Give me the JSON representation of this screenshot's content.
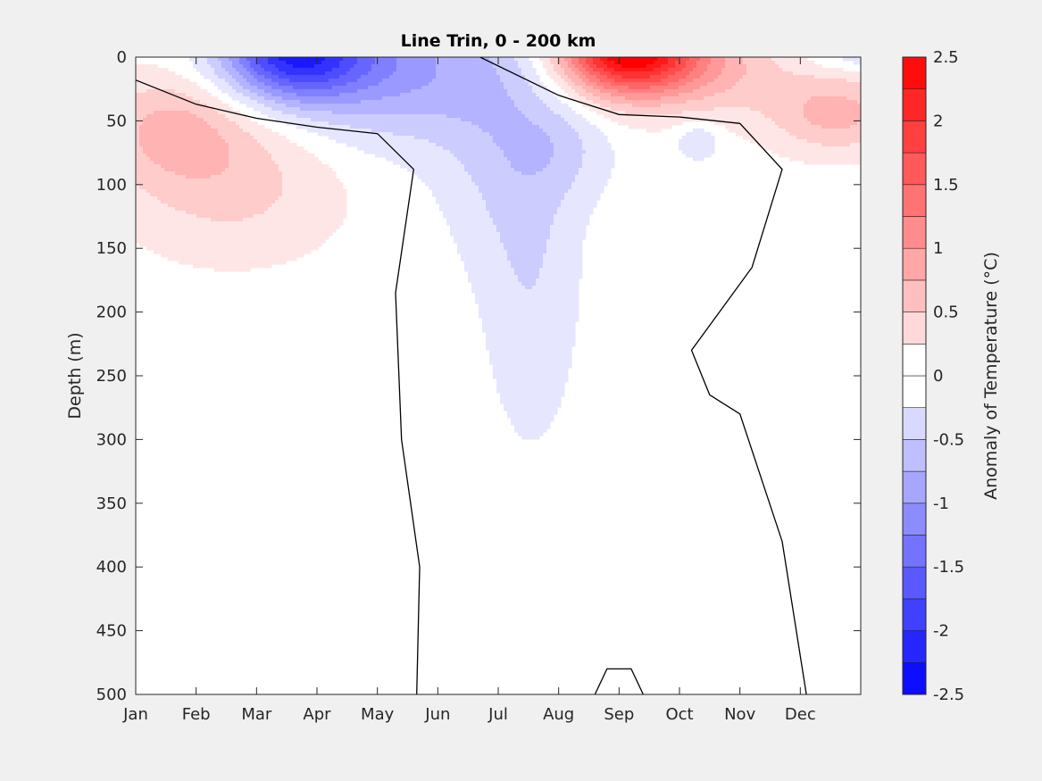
{
  "chart_data": {
    "type": "heatmap",
    "title": "Line Trin, 0 - 200 km",
    "xlabel": "",
    "ylabel": "Depth (m)",
    "x_categories": [
      "Jan",
      "Feb",
      "Mar",
      "Apr",
      "May",
      "Jun",
      "Jul",
      "Aug",
      "Sep",
      "Oct",
      "Nov",
      "Dec"
    ],
    "xlim": [
      1,
      13
    ],
    "y_ticks": [
      0,
      50,
      100,
      150,
      200,
      250,
      300,
      350,
      400,
      450,
      500
    ],
    "ylim": [
      0,
      500
    ],
    "y_reversed": true,
    "grid": false,
    "colorbar": {
      "label": "Anomaly of Temperature (°C)",
      "range": [
        -2.5,
        2.5
      ],
      "ticks": [
        "2.5",
        "2",
        "1.5",
        "1",
        "0.5",
        "0",
        "-0.5",
        "-1",
        "-1.5",
        "-2",
        "-2.5"
      ],
      "levels": [
        -2.5,
        -2.25,
        -2,
        -1.75,
        -1.5,
        -1.25,
        -1,
        -0.75,
        -0.5,
        -0.25,
        0,
        0.25,
        0.5,
        0.75,
        1,
        1.25,
        1.5,
        1.75,
        2,
        2.25,
        2.5
      ],
      "colormap": "blue-white-red",
      "negative_color": "#0000ff",
      "positive_color": "#ff0000"
    },
    "features": [
      {
        "kind": "cold-core",
        "month_center": 3.5,
        "depth_range": [
          0,
          25
        ],
        "min_anomaly": -1.75
      },
      {
        "kind": "cold-tongue",
        "month_range": [
          6.7,
          8.7
        ],
        "depth_range": [
          0,
          265
        ],
        "anomaly": -0.25
      },
      {
        "kind": "warm-core",
        "month_center": 9.1,
        "depth_range": [
          0,
          20
        ],
        "max_anomaly": 2.25
      },
      {
        "kind": "warm-lens",
        "month_range": [
          1,
          4.4
        ],
        "depth_range": [
          25,
          148
        ],
        "anomaly": 0.5
      },
      {
        "kind": "warm-lens",
        "month_range": [
          11.3,
          13
        ],
        "depth_range": [
          5,
          90
        ],
        "anomaly": 0.75
      }
    ],
    "zero_contours": [
      {
        "name": "winter-boundary",
        "points": [
          [
            1,
            18
          ],
          [
            2,
            37
          ],
          [
            3,
            48
          ],
          [
            4,
            55
          ],
          [
            5,
            60
          ],
          [
            5.6,
            88
          ],
          [
            5.3,
            185
          ],
          [
            5.4,
            300
          ],
          [
            5.7,
            400
          ],
          [
            5.65,
            500
          ]
        ]
      },
      {
        "name": "summer-top",
        "points": [
          [
            6.7,
            0
          ],
          [
            8,
            30
          ],
          [
            9,
            45
          ],
          [
            10,
            47
          ],
          [
            11,
            52
          ],
          [
            11.7,
            88
          ],
          [
            11.2,
            165
          ],
          [
            10.2,
            230
          ],
          [
            10.5,
            265
          ],
          [
            11,
            280
          ],
          [
            11.7,
            380
          ],
          [
            12.1,
            500
          ]
        ]
      },
      {
        "name": "deep-dome",
        "points": [
          [
            8.6,
            500
          ],
          [
            8.8,
            480
          ],
          [
            9.2,
            480
          ],
          [
            9.4,
            500
          ]
        ]
      }
    ]
  }
}
